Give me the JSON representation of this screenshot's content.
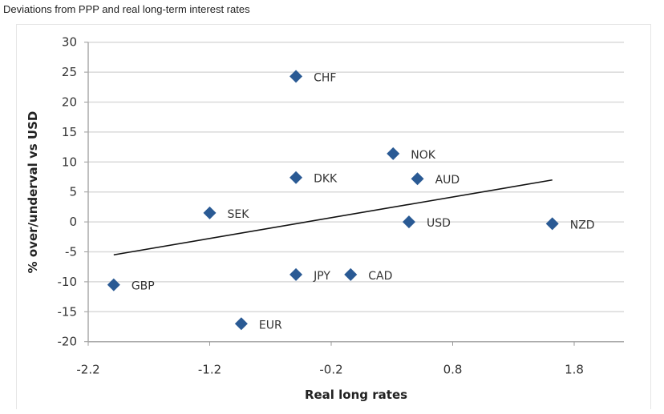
{
  "title": "Deviations from PPP and real long-term interest rates",
  "chart_data": {
    "type": "scatter",
    "title": "Deviations from PPP and real long-term interest rates",
    "xlabel": "Real long rates",
    "ylabel": "% over/underval vs USD",
    "xlim": [
      -2.2,
      2.2
    ],
    "ylim": [
      -20,
      30
    ],
    "xticks": [
      "-2.2",
      "-1.2",
      "-0.2",
      "0.8",
      "1.8"
    ],
    "yticks": [
      "30",
      "25",
      "20",
      "15",
      "10",
      "5",
      "0",
      "-5",
      "-10",
      "-15",
      "-20"
    ],
    "grid": true,
    "marker_color": "#2a5a94",
    "points": [
      {
        "label": "CHF",
        "x": -0.49,
        "y": 24.3
      },
      {
        "label": "NOK",
        "x": 0.31,
        "y": 11.4
      },
      {
        "label": "DKK",
        "x": -0.49,
        "y": 7.4
      },
      {
        "label": "AUD",
        "x": 0.51,
        "y": 7.2
      },
      {
        "label": "SEK",
        "x": -1.2,
        "y": 1.5
      },
      {
        "label": "USD",
        "x": 0.44,
        "y": 0
      },
      {
        "label": "NZD",
        "x": 1.62,
        "y": -0.3
      },
      {
        "label": "GBP",
        "x": -1.99,
        "y": -10.5
      },
      {
        "label": "JPY",
        "x": -0.49,
        "y": -8.8
      },
      {
        "label": "CAD",
        "x": -0.04,
        "y": -8.8
      },
      {
        "label": "EUR",
        "x": -0.94,
        "y": -17
      }
    ],
    "trendline": {
      "x": [
        -1.99,
        1.62
      ],
      "y": [
        -5.5,
        7.0
      ]
    }
  }
}
